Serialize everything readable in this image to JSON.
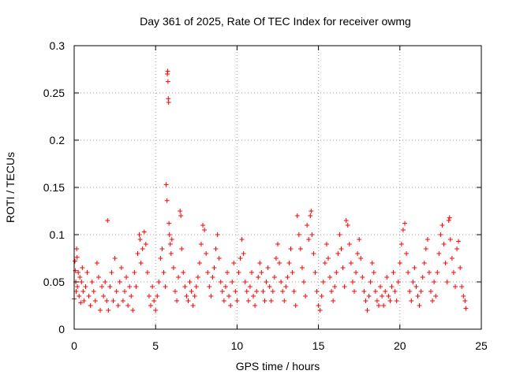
{
  "chart_data": {
    "type": "scatter",
    "title": "Day 361 of 2025, Rate Of TEC Index for receiver owmg",
    "xlabel": "GPS time / hours",
    "ylabel": "ROTI / TECUs",
    "xlim": [
      0,
      25
    ],
    "ylim": [
      0,
      0.3
    ],
    "xticks": [
      0,
      5,
      10,
      15,
      20,
      25
    ],
    "xtick_labels": [
      "0",
      "5",
      "10",
      "15",
      "20",
      "25"
    ],
    "yticks": [
      0,
      0.05,
      0.1,
      0.15,
      0.2,
      0.25,
      0.3
    ],
    "ytick_labels": [
      "0",
      "0.05",
      "0.1",
      "0.15",
      "0.2",
      "0.25",
      "0.3"
    ],
    "grid": true,
    "legend": false,
    "marker": "plus",
    "color": "#ff0000",
    "series": [
      {
        "points": [
          [
            0.0,
            0.032
          ],
          [
            0.05,
            0.072
          ],
          [
            0.08,
            0.062
          ],
          [
            0.1,
            0.05
          ],
          [
            0.12,
            0.04
          ],
          [
            0.15,
            0.085
          ],
          [
            0.18,
            0.076
          ],
          [
            0.2,
            0.045
          ],
          [
            0.25,
            0.06
          ],
          [
            0.3,
            0.035
          ],
          [
            0.35,
            0.055
          ],
          [
            0.4,
            0.028
          ],
          [
            0.45,
            0.05
          ],
          [
            0.5,
            0.065
          ],
          [
            0.55,
            0.04
          ],
          [
            0.6,
            0.03
          ],
          [
            0.7,
            0.045
          ],
          [
            0.8,
            0.06
          ],
          [
            0.9,
            0.035
          ],
          [
            1.0,
            0.025
          ],
          [
            1.1,
            0.05
          ],
          [
            1.2,
            0.04
          ],
          [
            1.3,
            0.03
          ],
          [
            1.4,
            0.07
          ],
          [
            1.5,
            0.055
          ],
          [
            1.6,
            0.02
          ],
          [
            1.7,
            0.045
          ],
          [
            1.8,
            0.035
          ],
          [
            1.9,
            0.05
          ],
          [
            2.0,
            0.03
          ],
          [
            2.05,
            0.115
          ],
          [
            2.1,
            0.02
          ],
          [
            2.2,
            0.045
          ],
          [
            2.3,
            0.06
          ],
          [
            2.4,
            0.03
          ],
          [
            2.5,
            0.075
          ],
          [
            2.6,
            0.04
          ],
          [
            2.7,
            0.025
          ],
          [
            2.8,
            0.05
          ],
          [
            2.9,
            0.065
          ],
          [
            3.0,
            0.03
          ],
          [
            3.1,
            0.04
          ],
          [
            3.2,
            0.055
          ],
          [
            3.3,
            0.025
          ],
          [
            3.4,
            0.045
          ],
          [
            3.5,
            0.035
          ],
          [
            3.6,
            0.02
          ],
          [
            3.7,
            0.06
          ],
          [
            3.8,
            0.045
          ],
          [
            3.9,
            0.08
          ],
          [
            4.0,
            0.1
          ],
          [
            4.05,
            0.095
          ],
          [
            4.1,
            0.07
          ],
          [
            4.2,
            0.085
          ],
          [
            4.3,
            0.103
          ],
          [
            4.4,
            0.09
          ],
          [
            4.5,
            0.06
          ],
          [
            4.6,
            0.035
          ],
          [
            4.7,
            0.025
          ],
          [
            4.8,
            0.045
          ],
          [
            4.9,
            0.03
          ],
          [
            5.0,
            0.02
          ],
          [
            5.1,
            0.035
          ],
          [
            5.2,
            0.05
          ],
          [
            5.3,
            0.075
          ],
          [
            5.4,
            0.085
          ],
          [
            5.5,
            0.06
          ],
          [
            5.6,
            0.045
          ],
          [
            5.65,
            0.153
          ],
          [
            5.7,
            0.136
          ],
          [
            5.72,
            0.27
          ],
          [
            5.74,
            0.273
          ],
          [
            5.76,
            0.262
          ],
          [
            5.78,
            0.244
          ],
          [
            5.8,
            0.24
          ],
          [
            5.82,
            0.112
          ],
          [
            5.85,
            0.1
          ],
          [
            5.9,
            0.09
          ],
          [
            5.95,
            0.08
          ],
          [
            6.0,
            0.095
          ],
          [
            6.1,
            0.065
          ],
          [
            6.2,
            0.04
          ],
          [
            6.3,
            0.03
          ],
          [
            6.4,
            0.055
          ],
          [
            6.5,
            0.125
          ],
          [
            6.55,
            0.12
          ],
          [
            6.6,
            0.085
          ],
          [
            6.7,
            0.06
          ],
          [
            6.8,
            0.045
          ],
          [
            6.9,
            0.035
          ],
          [
            7.0,
            0.03
          ],
          [
            7.1,
            0.05
          ],
          [
            7.2,
            0.04
          ],
          [
            7.3,
            0.025
          ],
          [
            7.4,
            0.035
          ],
          [
            7.5,
            0.045
          ],
          [
            7.6,
            0.055
          ],
          [
            7.7,
            0.07
          ],
          [
            7.8,
            0.09
          ],
          [
            7.9,
            0.11
          ],
          [
            8.0,
            0.105
          ],
          [
            8.1,
            0.08
          ],
          [
            8.2,
            0.06
          ],
          [
            8.3,
            0.045
          ],
          [
            8.4,
            0.035
          ],
          [
            8.5,
            0.055
          ],
          [
            8.6,
            0.065
          ],
          [
            8.7,
            0.085
          ],
          [
            8.8,
            0.1
          ],
          [
            8.9,
            0.075
          ],
          [
            9.0,
            0.05
          ],
          [
            9.1,
            0.04
          ],
          [
            9.2,
            0.03
          ],
          [
            9.3,
            0.045
          ],
          [
            9.4,
            0.06
          ],
          [
            9.5,
            0.035
          ],
          [
            9.6,
            0.025
          ],
          [
            9.7,
            0.05
          ],
          [
            9.8,
            0.07
          ],
          [
            9.9,
            0.04
          ],
          [
            10.0,
            0.03
          ],
          [
            10.1,
            0.06
          ],
          [
            10.2,
            0.075
          ],
          [
            10.3,
            0.095
          ],
          [
            10.4,
            0.08
          ],
          [
            10.5,
            0.05
          ],
          [
            10.6,
            0.04
          ],
          [
            10.7,
            0.03
          ],
          [
            10.8,
            0.045
          ],
          [
            10.9,
            0.06
          ],
          [
            11.0,
            0.035
          ],
          [
            11.1,
            0.025
          ],
          [
            11.2,
            0.04
          ],
          [
            11.3,
            0.055
          ],
          [
            11.4,
            0.07
          ],
          [
            11.5,
            0.06
          ],
          [
            11.6,
            0.04
          ],
          [
            11.7,
            0.03
          ],
          [
            11.8,
            0.05
          ],
          [
            11.9,
            0.065
          ],
          [
            12.0,
            0.045
          ],
          [
            12.1,
            0.03
          ],
          [
            12.2,
            0.04
          ],
          [
            12.3,
            0.055
          ],
          [
            12.4,
            0.075
          ],
          [
            12.5,
            0.09
          ],
          [
            12.6,
            0.07
          ],
          [
            12.7,
            0.05
          ],
          [
            12.8,
            0.04
          ],
          [
            12.9,
            0.03
          ],
          [
            13.0,
            0.045
          ],
          [
            13.1,
            0.055
          ],
          [
            13.2,
            0.07
          ],
          [
            13.3,
            0.085
          ],
          [
            13.4,
            0.06
          ],
          [
            13.5,
            0.04
          ],
          [
            13.6,
            0.025
          ],
          [
            13.7,
            0.12
          ],
          [
            13.8,
            0.1
          ],
          [
            13.9,
            0.085
          ],
          [
            14.0,
            0.065
          ],
          [
            14.1,
            0.05
          ],
          [
            14.2,
            0.035
          ],
          [
            14.3,
            0.11
          ],
          [
            14.4,
            0.095
          ],
          [
            14.5,
            0.12
          ],
          [
            14.55,
            0.125
          ],
          [
            14.6,
            0.1
          ],
          [
            14.7,
            0.08
          ],
          [
            14.8,
            0.06
          ],
          [
            14.9,
            0.04
          ],
          [
            15.0,
            0.025
          ],
          [
            15.1,
            0.02
          ],
          [
            15.2,
            0.035
          ],
          [
            15.3,
            0.05
          ],
          [
            15.4,
            0.07
          ],
          [
            15.5,
            0.09
          ],
          [
            15.6,
            0.075
          ],
          [
            15.7,
            0.055
          ],
          [
            15.8,
            0.04
          ],
          [
            15.9,
            0.03
          ],
          [
            16.0,
            0.045
          ],
          [
            16.1,
            0.06
          ],
          [
            16.2,
            0.08
          ],
          [
            16.3,
            0.1
          ],
          [
            16.4,
            0.085
          ],
          [
            16.5,
            0.065
          ],
          [
            16.6,
            0.045
          ],
          [
            16.7,
            0.115
          ],
          [
            16.8,
            0.11
          ],
          [
            16.9,
            0.09
          ],
          [
            17.0,
            0.07
          ],
          [
            17.1,
            0.05
          ],
          [
            17.2,
            0.04
          ],
          [
            17.3,
            0.06
          ],
          [
            17.4,
            0.08
          ],
          [
            17.5,
            0.095
          ],
          [
            17.6,
            0.075
          ],
          [
            17.7,
            0.055
          ],
          [
            17.8,
            0.04
          ],
          [
            17.9,
            0.03
          ],
          [
            18.0,
            0.02
          ],
          [
            18.1,
            0.035
          ],
          [
            18.2,
            0.05
          ],
          [
            18.3,
            0.07
          ],
          [
            18.4,
            0.06
          ],
          [
            18.5,
            0.04
          ],
          [
            18.6,
            0.03
          ],
          [
            18.7,
            0.025
          ],
          [
            18.8,
            0.045
          ],
          [
            18.9,
            0.035
          ],
          [
            19.0,
            0.025
          ],
          [
            19.1,
            0.04
          ],
          [
            19.2,
            0.055
          ],
          [
            19.3,
            0.035
          ],
          [
            19.4,
            0.03
          ],
          [
            19.5,
            0.045
          ],
          [
            19.6,
            0.06
          ],
          [
            19.7,
            0.04
          ],
          [
            19.8,
            0.03
          ],
          [
            19.9,
            0.05
          ],
          [
            20.0,
            0.07
          ],
          [
            20.1,
            0.09
          ],
          [
            20.2,
            0.105
          ],
          [
            20.3,
            0.112
          ],
          [
            20.4,
            0.08
          ],
          [
            20.5,
            0.06
          ],
          [
            20.6,
            0.04
          ],
          [
            20.7,
            0.03
          ],
          [
            20.8,
            0.05
          ],
          [
            20.9,
            0.065
          ],
          [
            21.0,
            0.045
          ],
          [
            21.1,
            0.035
          ],
          [
            21.2,
            0.025
          ],
          [
            21.3,
            0.04
          ],
          [
            21.4,
            0.055
          ],
          [
            21.5,
            0.07
          ],
          [
            21.6,
            0.085
          ],
          [
            21.7,
            0.095
          ],
          [
            21.8,
            0.06
          ],
          [
            21.9,
            0.04
          ],
          [
            22.0,
            0.03
          ],
          [
            22.1,
            0.05
          ],
          [
            22.2,
            0.035
          ],
          [
            22.3,
            0.06
          ],
          [
            22.4,
            0.08
          ],
          [
            22.5,
            0.1
          ],
          [
            22.6,
            0.11
          ],
          [
            22.7,
            0.09
          ],
          [
            22.8,
            0.07
          ],
          [
            22.9,
            0.05
          ],
          [
            23.0,
            0.115
          ],
          [
            23.05,
            0.118
          ],
          [
            23.1,
            0.095
          ],
          [
            23.2,
            0.075
          ],
          [
            23.3,
            0.06
          ],
          [
            23.4,
            0.045
          ],
          [
            23.5,
            0.085
          ],
          [
            23.6,
            0.093
          ],
          [
            23.7,
            0.065
          ],
          [
            23.8,
            0.045
          ],
          [
            23.9,
            0.035
          ],
          [
            24.0,
            0.03
          ],
          [
            24.05,
            0.022
          ]
        ]
      }
    ]
  }
}
